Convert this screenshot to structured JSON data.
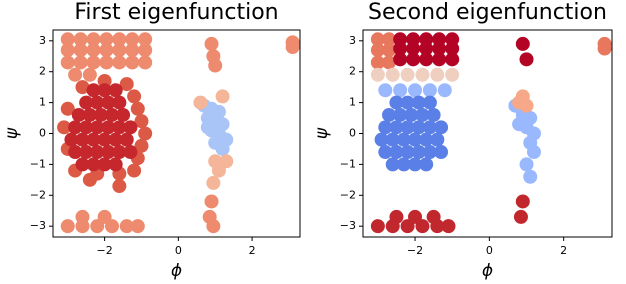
{
  "chart_data": [
    {
      "type": "scatter",
      "title": "First eigenfunction",
      "xlabel": "ϕ",
      "ylabel": "ψ",
      "xlim": [
        -3.4,
        3.3
      ],
      "ylim": [
        -3.35,
        3.35
      ],
      "xticks": [
        {
          "value": -2,
          "label": "−2"
        },
        0,
        2
      ],
      "yticks": [
        {
          "value": -3,
          "label": "−3"
        },
        {
          "value": -2,
          "label": "−2"
        },
        {
          "value": -1,
          "label": "−1"
        },
        0,
        1,
        2,
        3
      ],
      "series": [
        {
          "color": "#ee8a6d",
          "x": [
            -3.0,
            -2.65,
            -2.3,
            -1.95,
            -1.6,
            -1.25,
            -0.9,
            -3.0,
            -2.65,
            -2.3,
            -1.95,
            -1.6,
            -1.25,
            -0.9,
            -3.0,
            -2.65,
            -2.3,
            -1.95,
            -1.6,
            -1.25,
            -0.9,
            -2.8,
            -2.4,
            -3.0,
            -2.6,
            -2.2,
            -1.8,
            -1.4,
            -1.1,
            -2.6,
            -2.0,
            0.9,
            0.95,
            1.0,
            3.1,
            3.1,
            0.9,
            0.85,
            0.95
          ],
          "values": [
            2.3,
            2.3,
            2.3,
            2.3,
            2.3,
            2.3,
            2.3,
            2.7,
            2.7,
            2.7,
            2.7,
            2.7,
            2.7,
            2.7,
            3.05,
            3.05,
            3.05,
            3.05,
            3.05,
            3.05,
            3.05,
            1.9,
            1.9,
            -3.0,
            -3.0,
            -3.0,
            -3.0,
            -3.0,
            -3.0,
            -2.7,
            -2.7,
            2.9,
            2.5,
            2.2,
            2.95,
            2.8,
            -2.2,
            -2.7,
            -3.0
          ]
        },
        {
          "color": "#dc5a45",
          "x": [
            -1.1,
            -1.0,
            -0.9,
            -1.0,
            -1.1,
            -1.2,
            -1.4,
            -2.0,
            -2.6,
            -3.0,
            -3.1,
            -3.0,
            -2.8,
            -2.2,
            -1.6,
            -1.2,
            -1.6,
            -2.4
          ],
          "values": [
            -0.8,
            -0.4,
            0,
            0.4,
            0.8,
            1.2,
            1.6,
            1.7,
            1.5,
            0.8,
            0.2,
            -0.5,
            -1.2,
            -1.3,
            -1.3,
            -1.2,
            -1.7,
            -1.5
          ]
        },
        {
          "color": "#c5272d",
          "x": [
            -2.6,
            -2.3,
            -2.0,
            -1.7,
            -2.8,
            -2.5,
            -2.2,
            -1.9,
            -1.6,
            -1.3,
            -2.9,
            -2.6,
            -2.3,
            -2.0,
            -1.7,
            -1.4,
            -2.8,
            -2.5,
            -2.2,
            -1.9,
            -1.6,
            -1.3,
            -2.7,
            -2.4,
            -2.1,
            -1.8,
            -1.5,
            -2.5,
            -2.2,
            -1.9,
            -1.6,
            -2.3,
            -2.0,
            -1.7
          ],
          "values": [
            -1.0,
            -1.0,
            -1.0,
            -1.0,
            -0.6,
            -0.6,
            -0.6,
            -0.6,
            -0.6,
            -0.6,
            -0.2,
            -0.2,
            -0.2,
            -0.2,
            -0.2,
            -0.2,
            0.2,
            0.2,
            0.2,
            0.2,
            0.2,
            0.2,
            0.6,
            0.6,
            0.6,
            0.6,
            0.6,
            1.0,
            1.0,
            1.0,
            1.0,
            1.4,
            1.4,
            1.4
          ]
        },
        {
          "color": "#a9c4f6",
          "x": [
            0.7,
            0.9,
            1.1,
            0.8,
            1.0,
            1.2,
            0.9,
            1.1,
            1.3,
            1.0,
            1.2,
            0.8
          ],
          "values": [
            0.9,
            0.8,
            0.7,
            0.5,
            0.4,
            0.3,
            0.1,
            0,
            -0.2,
            -0.3,
            -0.5,
            0.2
          ]
        },
        {
          "color": "#f4b599",
          "x": [
            1.0,
            1.1,
            0.95,
            1.2,
            0.6,
            1.3
          ],
          "values": [
            -0.9,
            -1.2,
            -1.6,
            1.2,
            1.0,
            -0.9
          ]
        }
      ]
    },
    {
      "type": "scatter",
      "title": "Second eigenfunction",
      "xlabel": "ϕ",
      "ylabel": "ψ",
      "xlim": [
        -3.4,
        3.3
      ],
      "ylim": [
        -3.35,
        3.35
      ],
      "xticks": [
        {
          "value": -2,
          "label": "−2"
        },
        0,
        2
      ],
      "yticks": [
        {
          "value": -3,
          "label": "−3"
        },
        {
          "value": -2,
          "label": "−2"
        },
        {
          "value": -1,
          "label": "−1"
        },
        0,
        1,
        2,
        3
      ],
      "series": [
        {
          "color": "#e7785d",
          "x": [
            -3.0,
            -2.7,
            -3.0,
            -2.7,
            -3.0,
            -2.7,
            3.1,
            3.1
          ],
          "values": [
            2.3,
            2.3,
            2.7,
            2.7,
            3.05,
            3.05,
            2.9,
            2.75
          ]
        },
        {
          "color": "#b40426",
          "x": [
            -2.4,
            -2.05,
            -1.7,
            -1.35,
            -1.0,
            -2.4,
            -2.05,
            -1.7,
            -1.35,
            -1.0,
            -2.4,
            -2.05,
            -1.7,
            -1.35,
            -1.0,
            0.9,
            1.0
          ],
          "values": [
            2.4,
            2.4,
            2.4,
            2.4,
            2.4,
            2.75,
            2.75,
            2.75,
            2.75,
            2.75,
            3.05,
            3.05,
            3.05,
            3.05,
            3.05,
            2.9,
            2.4
          ]
        },
        {
          "color": "#efcfbf",
          "x": [
            -3.0,
            -2.6,
            -2.2,
            -1.8,
            -1.4,
            -1.0
          ],
          "values": [
            1.9,
            1.9,
            1.9,
            1.9,
            1.9,
            1.9
          ]
        },
        {
          "color": "#9ab8fd",
          "x": [
            -2.8,
            -2.4,
            -2.0,
            -1.6,
            -1.2,
            0.7,
            0.9,
            1.1,
            1.0,
            1.2,
            1.1,
            1.2,
            0.8,
            1.0,
            1.1
          ],
          "values": [
            1.4,
            1.4,
            1.4,
            1.4,
            1.4,
            0.9,
            0.6,
            0.5,
            0.2,
            0,
            -0.3,
            -0.6,
            0.3,
            -1.0,
            -1.4
          ]
        },
        {
          "color": "#5a7fe6",
          "x": [
            -2.6,
            -2.3,
            -2.0,
            -1.7,
            -2.8,
            -2.5,
            -2.2,
            -1.9,
            -1.6,
            -1.3,
            -2.9,
            -2.6,
            -2.3,
            -2.0,
            -1.7,
            -1.4,
            -2.8,
            -2.5,
            -2.2,
            -1.9,
            -1.6,
            -1.3,
            -2.7,
            -2.4,
            -2.1,
            -1.8,
            -1.5,
            -2.5,
            -2.2,
            -1.9,
            -1.6
          ],
          "values": [
            -1.0,
            -1.0,
            -1.0,
            -1.0,
            -0.6,
            -0.6,
            -0.6,
            -0.6,
            -0.6,
            -0.6,
            -0.2,
            -0.2,
            -0.2,
            -0.2,
            -0.2,
            -0.2,
            0.2,
            0.2,
            0.2,
            0.2,
            0.2,
            0.2,
            0.6,
            0.6,
            0.6,
            0.6,
            0.6,
            1.0,
            1.0,
            1.0,
            1.0
          ]
        },
        {
          "color": "#c0282d",
          "x": [
            -3.0,
            -2.6,
            -2.2,
            -1.8,
            -1.4,
            -1.1,
            -2.5,
            -2.0,
            -1.5,
            0.9,
            0.85
          ],
          "values": [
            -3.0,
            -3.0,
            -3.0,
            -3.0,
            -3.0,
            -3.0,
            -2.7,
            -2.7,
            -2.7,
            -2.2,
            -2.7
          ]
        },
        {
          "color": "#f7a889",
          "x": [
            0.8,
            0.9,
            1.0
          ],
          "values": [
            1.0,
            1.2,
            0.9
          ]
        }
      ]
    }
  ]
}
